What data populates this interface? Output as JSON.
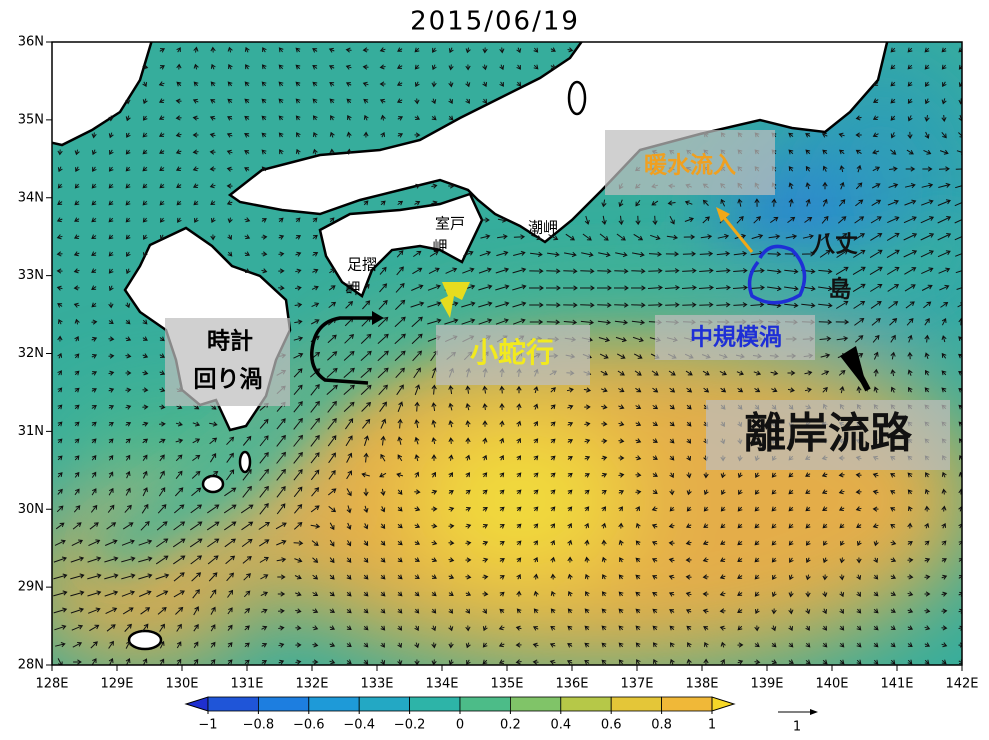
{
  "map": {
    "title": "2015/06/19",
    "xlim": [
      128,
      142
    ],
    "ylim": [
      28,
      36
    ],
    "xticks": [
      {
        "value": 128,
        "label": "128E"
      },
      {
        "value": 129,
        "label": "129E"
      },
      {
        "value": 130,
        "label": "130E"
      },
      {
        "value": 131,
        "label": "131E"
      },
      {
        "value": 132,
        "label": "132E"
      },
      {
        "value": 133,
        "label": "133E"
      },
      {
        "value": 134,
        "label": "134E"
      },
      {
        "value": 135,
        "label": "135E"
      },
      {
        "value": 136,
        "label": "136E"
      },
      {
        "value": 137,
        "label": "137E"
      },
      {
        "value": 138,
        "label": "138E"
      },
      {
        "value": 139,
        "label": "139E"
      },
      {
        "value": 140,
        "label": "140E"
      },
      {
        "value": 141,
        "label": "141E"
      },
      {
        "value": 142,
        "label": "142E"
      }
    ],
    "yticks": [
      {
        "value": 28,
        "label": "28N"
      },
      {
        "value": 29,
        "label": "29N"
      },
      {
        "value": 30,
        "label": "30N"
      },
      {
        "value": 31,
        "label": "31N"
      },
      {
        "value": 32,
        "label": "32N"
      },
      {
        "value": 33,
        "label": "33N"
      },
      {
        "value": 34,
        "label": "34N"
      },
      {
        "value": 35,
        "label": "35N"
      },
      {
        "value": 36,
        "label": "36N"
      }
    ],
    "colorbar": {
      "range": [
        -1,
        1
      ],
      "ticks": [
        {
          "value": -1,
          "label": "−1"
        },
        {
          "value": -0.8,
          "label": "−0.8"
        },
        {
          "value": -0.6,
          "label": "−0.6"
        },
        {
          "value": -0.4,
          "label": "−0.4"
        },
        {
          "value": -0.2,
          "label": "−0.2"
        },
        0,
        0.2,
        0.4,
        0.6,
        0.8,
        1
      ],
      "colors": [
        "#1f2fd0",
        "#1f55d8",
        "#1d7ee0",
        "#1e9ad8",
        "#23a8c4",
        "#2db4a8",
        "#4cbc88",
        "#80c468",
        "#b6c848",
        "#e4c638",
        "#f0b838",
        "#f6d828"
      ]
    },
    "vector_scale_label": "1",
    "annotations": {
      "clockwise_eddy": [
        "時計",
        "回り渦"
      ],
      "small_meander": "小蛇行",
      "warm_inflow": "暖水流入",
      "mesoscale_eddy": "中規模渦",
      "offshore_path": "離岸流路",
      "ashizuri": [
        "足摺",
        "岬"
      ],
      "muroto": [
        "室戸",
        "岬"
      ],
      "shiono": "潮岬",
      "hachijo": [
        "八丈",
        "島"
      ]
    }
  }
}
